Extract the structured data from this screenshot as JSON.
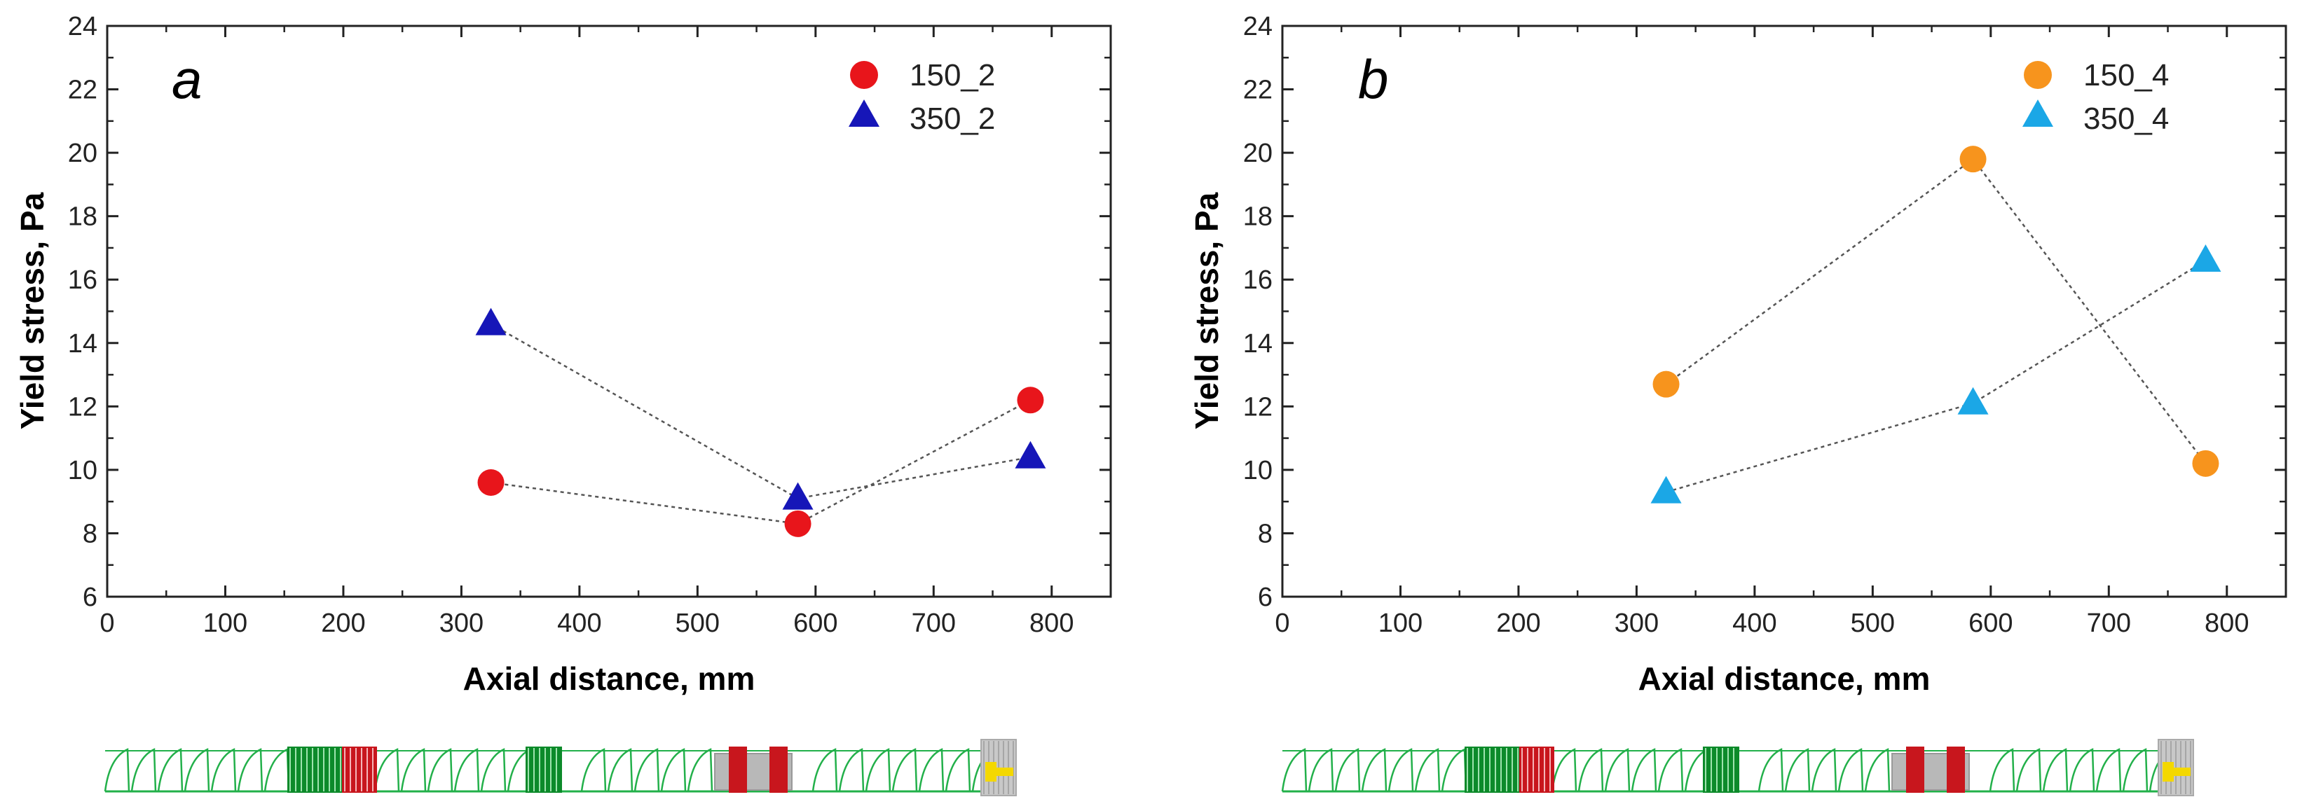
{
  "figure": {
    "colors": {
      "red": "#e8151b",
      "dark_blue": "#1616b8",
      "orange": "#f7941d",
      "light_blue": "#1ba7e6",
      "screw_green": "#22b04a",
      "screw_dark_green": "#0c8a2a",
      "screw_red": "#c8161d",
      "screw_gray": "#b8b8b8",
      "screw_yellow": "#f4d800"
    }
  },
  "chart_data": [
    {
      "id": "a",
      "type": "scatter",
      "panel_label": "a",
      "xlabel": "Axial distance, mm",
      "ylabel": "Yield stress, Pa",
      "xlim": [
        0,
        850
      ],
      "ylim": [
        6,
        24
      ],
      "xticks": [
        0,
        100,
        200,
        300,
        400,
        500,
        600,
        700,
        800
      ],
      "yticks": [
        6,
        8,
        10,
        12,
        14,
        16,
        18,
        20,
        22,
        24
      ],
      "legend_position": "top-right",
      "series": [
        {
          "name": "150_2",
          "marker": "circle",
          "color": "#e8151b",
          "connected": "dotted",
          "x": [
            325,
            585,
            782
          ],
          "y": [
            9.6,
            8.3,
            12.2
          ]
        },
        {
          "name": "350_2",
          "marker": "triangle",
          "color": "#1616b8",
          "connected": "dotted",
          "x": [
            325,
            585,
            782
          ],
          "y": [
            14.6,
            9.1,
            10.4
          ]
        }
      ]
    },
    {
      "id": "b",
      "type": "scatter",
      "panel_label": "b",
      "xlabel": "Axial distance, mm",
      "ylabel": "Yield stress, Pa",
      "xlim": [
        0,
        850
      ],
      "ylim": [
        6,
        24
      ],
      "xticks": [
        0,
        100,
        200,
        300,
        400,
        500,
        600,
        700,
        800
      ],
      "yticks": [
        6,
        8,
        10,
        12,
        14,
        16,
        18,
        20,
        22,
        24
      ],
      "legend_position": "top-right",
      "series": [
        {
          "name": "150_4",
          "marker": "circle",
          "color": "#f7941d",
          "connected": "dotted",
          "x": [
            325,
            585,
            782
          ],
          "y": [
            12.7,
            19.8,
            10.2
          ]
        },
        {
          "name": "350_4",
          "marker": "triangle",
          "color": "#1ba7e6",
          "connected": "dotted",
          "x": [
            325,
            585,
            782
          ],
          "y": [
            9.3,
            12.1,
            16.6
          ]
        }
      ]
    }
  ]
}
